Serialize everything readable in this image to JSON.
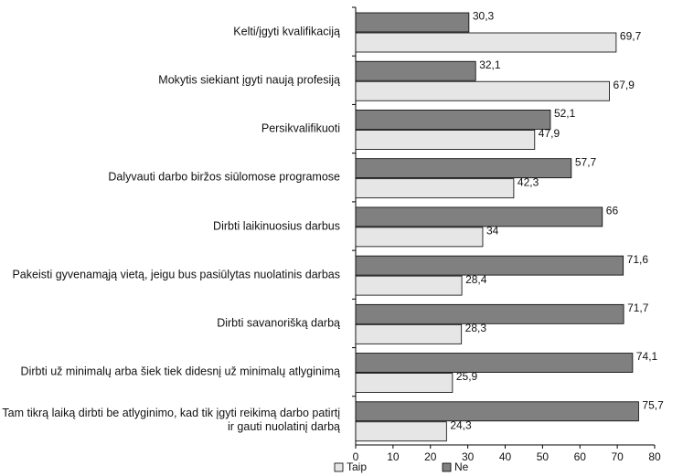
{
  "chart_data": {
    "type": "bar",
    "orientation": "horizontal",
    "categories": [
      "Kelti/įgyti kvalifikaciją",
      "Mokytis siekiant įgyti naują profesiją",
      "Persikvalifikuoti",
      "Dalyvauti darbo biržos siūlomose programose",
      "Dirbti laikinuosius darbus",
      "Pakeisti gyvenamąją vietą, jeigu bus pasiūlytas nuolatinis darbas",
      "Dirbti savanorišką darbą",
      "Dirbti už minimalų arba šiek tiek didesnį už minimalų atlyginimą",
      "Tam tikrą laiką dirbti be atlyginimo, kad tik įgyti reikimą darbo patirtį ir gauti nuolatinį darbą"
    ],
    "series": [
      {
        "name": "Taip",
        "color": "#e6e6e6",
        "values": [
          69.7,
          67.9,
          47.9,
          42.3,
          34,
          28.4,
          28.3,
          25.9,
          24.3
        ],
        "value_labels": [
          "69,7",
          "67,9",
          "47,9",
          "42,3",
          "34",
          "28,4",
          "28,3",
          "25,9",
          "24,3"
        ]
      },
      {
        "name": "Ne",
        "color": "#808080",
        "values": [
          30.3,
          32.1,
          52.1,
          57.7,
          66,
          71.6,
          71.7,
          74.1,
          75.7
        ],
        "value_labels": [
          "30,3",
          "32,1",
          "52,1",
          "57,7",
          "66",
          "71,6",
          "71,7",
          "74,1",
          "75,7"
        ]
      }
    ],
    "xlim": [
      0,
      80
    ],
    "xticks": [
      0,
      10,
      20,
      30,
      40,
      50,
      60,
      70,
      80
    ],
    "legend": "bottom"
  }
}
